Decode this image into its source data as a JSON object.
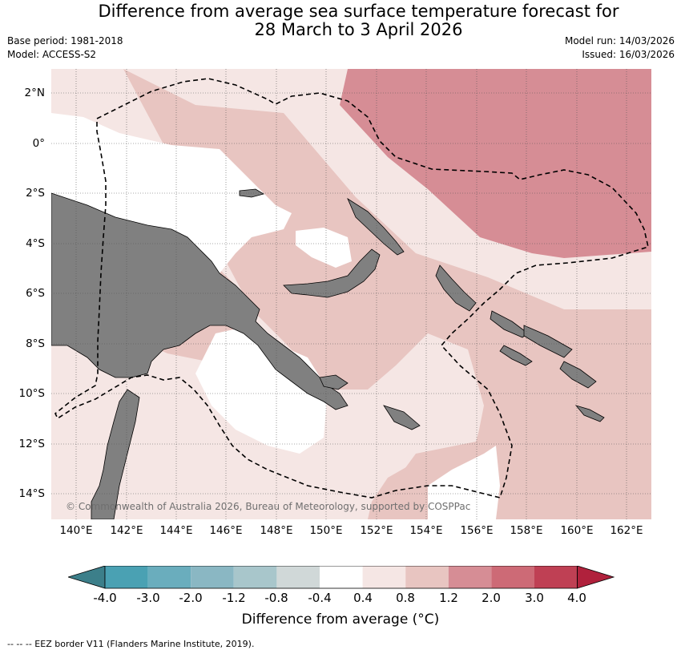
{
  "title_line1": "Difference from average sea surface temperature forecast for",
  "title_line2": "28 March to 3 April 2026",
  "base_period": "Base period: 1981-2018",
  "model": "Model: ACCESS-S2",
  "model_run": "Model run: 14/03/2026",
  "issued": "Issued: 16/03/2026",
  "lat_labels": [
    "2°N",
    "0°",
    "2°S",
    "4°S",
    "6°S",
    "8°S",
    "10°S",
    "12°S",
    "14°S"
  ],
  "lon_labels": [
    "140°E",
    "142°E",
    "144°E",
    "146°E",
    "148°E",
    "150°E",
    "152°E",
    "154°E",
    "156°E",
    "158°E",
    "160°E",
    "162°E"
  ],
  "copyright": "© Commonwealth of Australia 2026, Bureau of Meteorology, supported by COSPPac",
  "colorbar": {
    "label": "Difference from average (°C)",
    "ticks": [
      "-4.0",
      "-3.0",
      "-2.0",
      "-1.2",
      "-0.8",
      "-0.4",
      "0.4",
      "0.8",
      "1.2",
      "2.0",
      "3.0",
      "4.0"
    ],
    "colors": {
      "under": "#3c7f8a",
      "bins": [
        "#4aa1b3",
        "#6aadbd",
        "#8ab7c3",
        "#a8c6cb",
        "#d0d8d8",
        "#ffffff",
        "#f5e6e4",
        "#e8c5c1",
        "#d68d95",
        "#cd6a76",
        "#bf4054"
      ],
      "over": "#b0213c"
    }
  },
  "map_colors": {
    "land": "#808080",
    "white_bin": "#ffffff",
    "bin_0_4_0_8": "#f5e6e4",
    "bin_0_8_1_2": "#e8c5c1",
    "bin_1_2_2_0": "#d68d95"
  },
  "footnote": "-- -- -- EEZ border V11 (Flanders Marine Institute, 2019)."
}
